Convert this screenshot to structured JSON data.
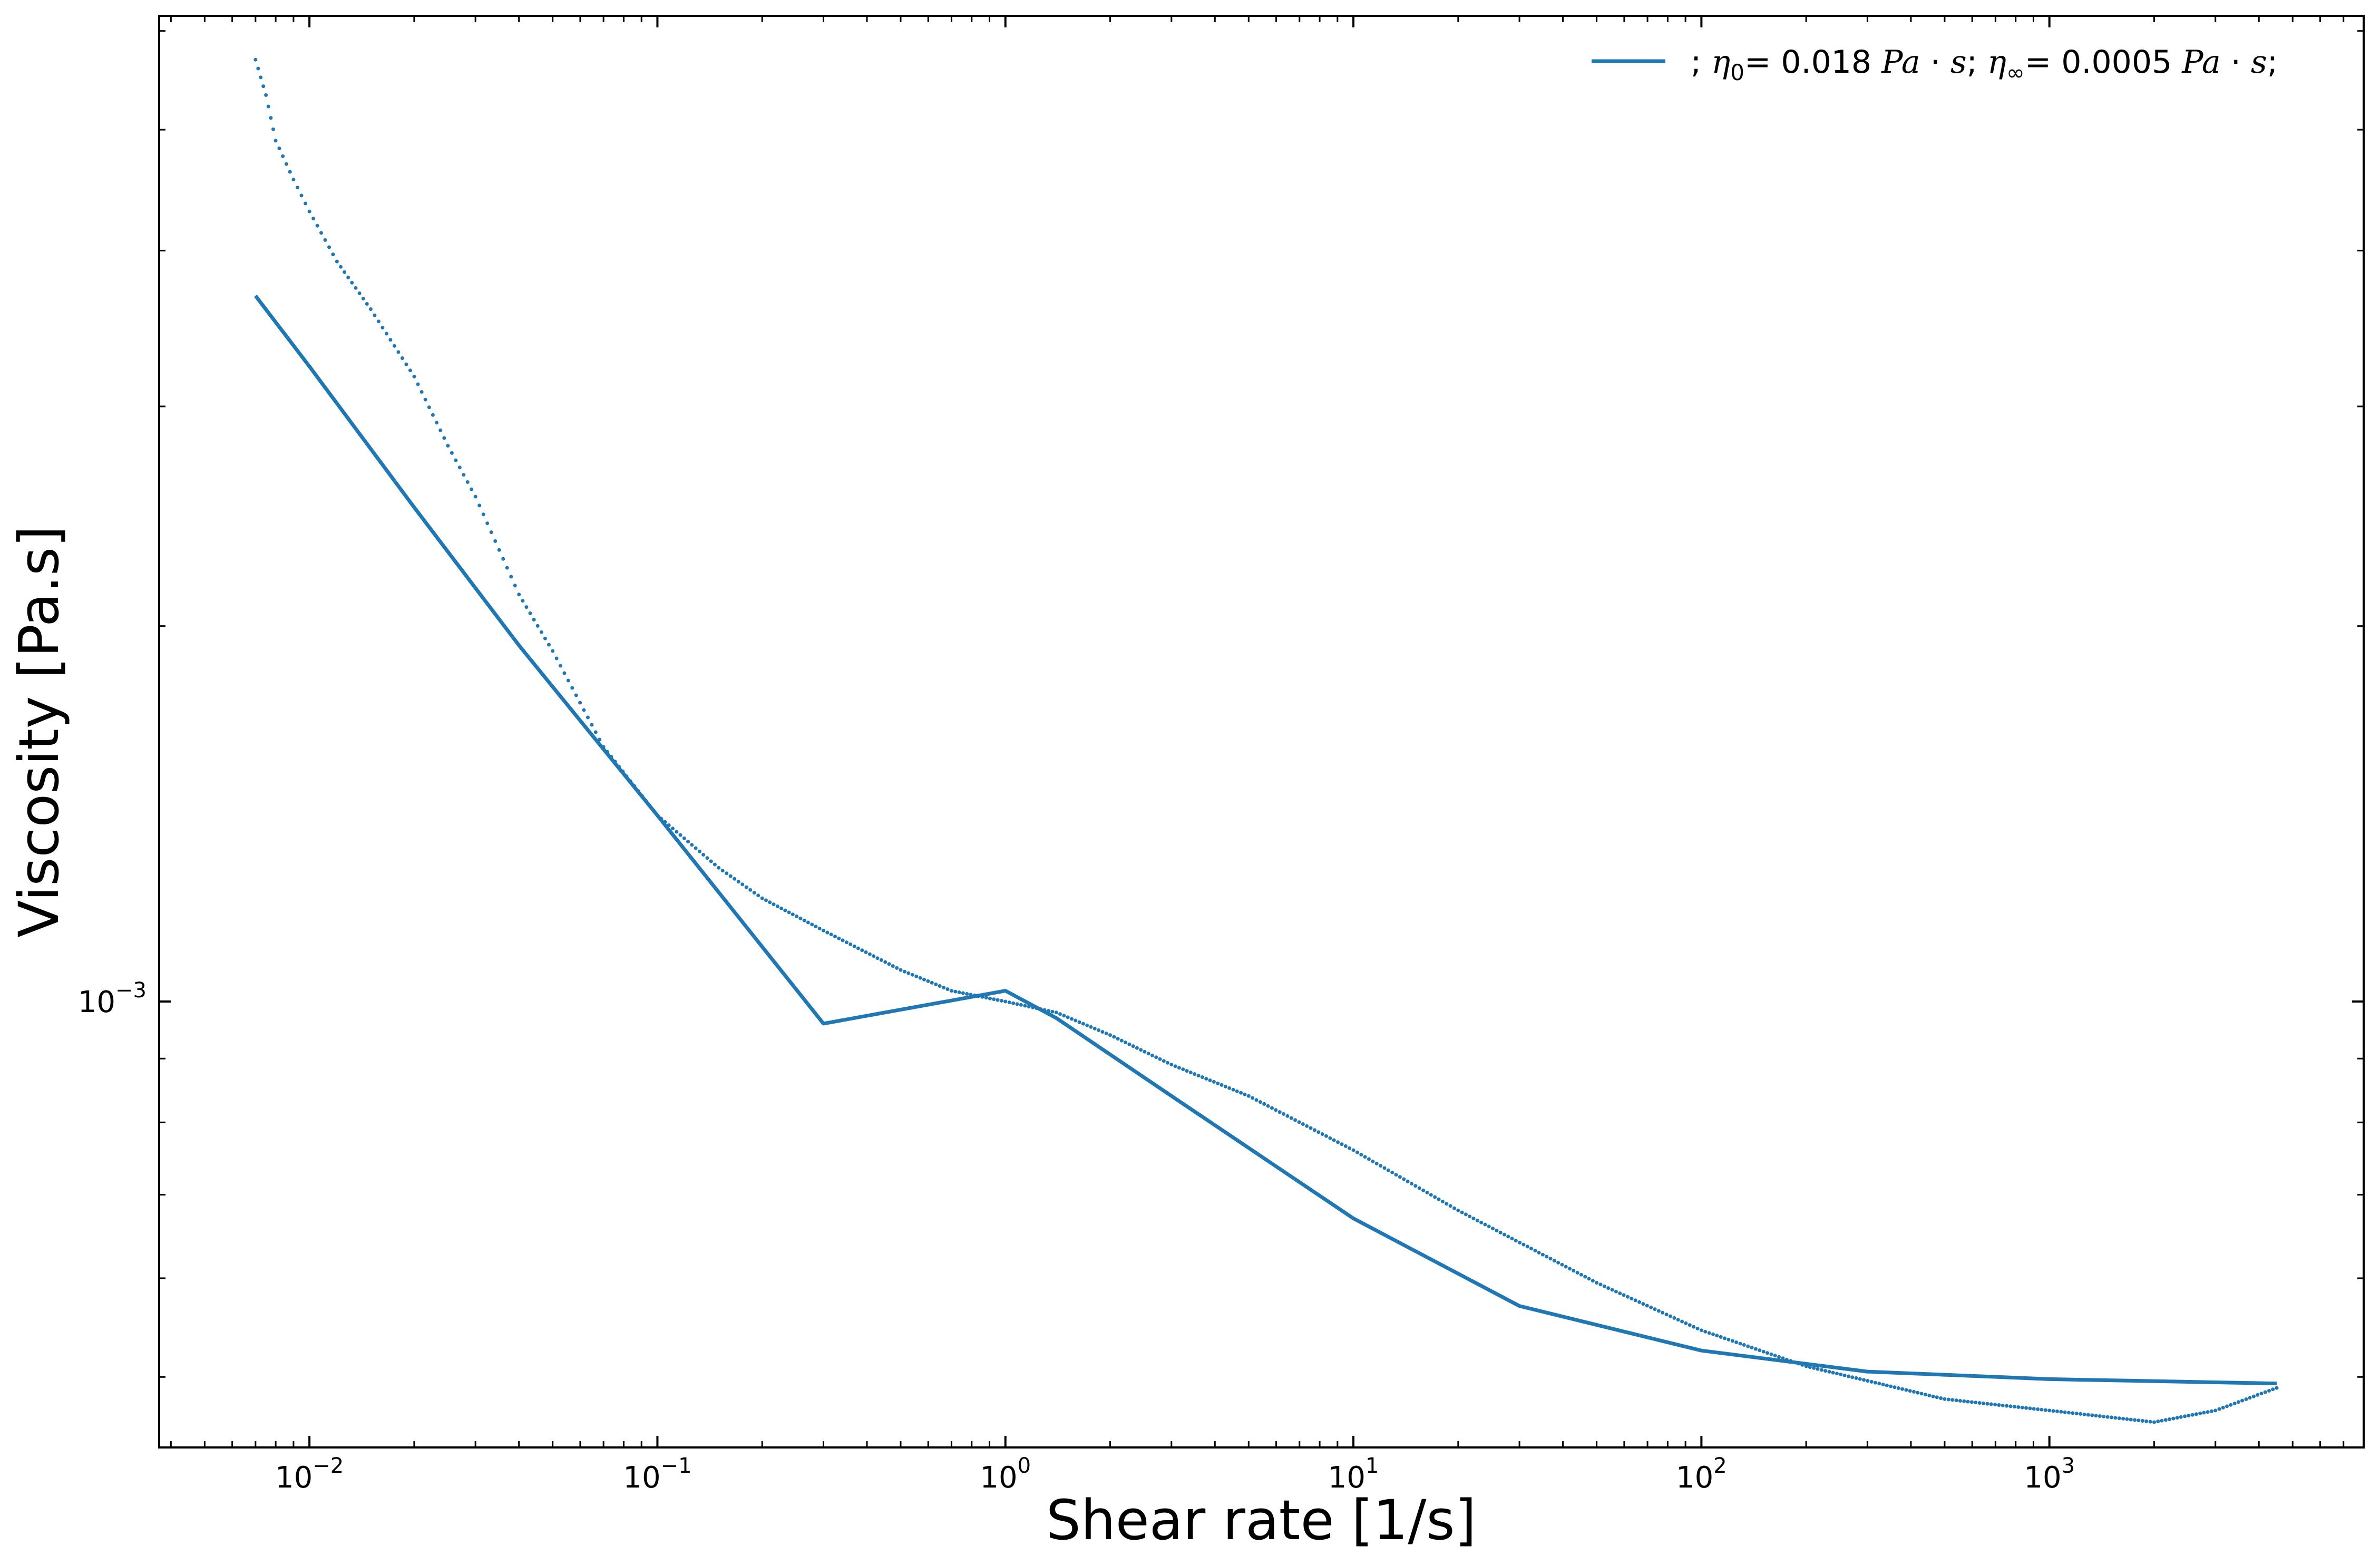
{
  "chart_data": {
    "type": "line",
    "xlabel": "Shear rate [1/s]",
    "ylabel": "Viscosity [Pa.s]",
    "xscale": "log",
    "yscale": "log",
    "xlim": [
      0.0037,
      8000
    ],
    "ylim": [
      0.000439,
      0.00617
    ],
    "x_ticks": [
      {
        "base": "10",
        "exp": "−2",
        "value": 0.01
      },
      {
        "base": "10",
        "exp": "−1",
        "value": 0.1
      },
      {
        "base": "10",
        "exp": "0",
        "value": 1
      },
      {
        "base": "10",
        "exp": "1",
        "value": 10
      },
      {
        "base": "10",
        "exp": "2",
        "value": 100
      },
      {
        "base": "10",
        "exp": "3",
        "value": 1000
      }
    ],
    "y_ticks": [
      {
        "base": "10",
        "exp": "−3",
        "value": 0.001
      }
    ],
    "legend": {
      "placement": "top-right",
      "prefix": "; ",
      "eta0_value": "= 0.018 ",
      "unit": "Pa",
      "dot": " · ",
      "unit_s": "s",
      "sep": "; ",
      "etainf_value": "= 0.0005 ",
      "suffix": ";",
      "eta_symbol": "η",
      "sub_zero": "0",
      "sub_inf": "∞"
    },
    "color": "#1f77b4",
    "series": [
      {
        "style": "line",
        "x": [
          0.007,
          0.01,
          0.02,
          0.04,
          0.1,
          0.3,
          1,
          1.4,
          3,
          10,
          30,
          100,
          300,
          1000,
          4500
        ],
        "y": [
          0.00368,
          0.00323,
          0.00249,
          0.00193,
          0.00141,
          0.00096,
          0.00102,
          0.00097,
          0.00084,
          0.00067,
          0.00057,
          0.000525,
          0.000505,
          0.000498,
          0.000494
        ]
      },
      {
        "style": "points",
        "x": [
          0.007,
          0.0075,
          0.008,
          0.009,
          0.01,
          0.012,
          0.015,
          0.02,
          0.025,
          0.03,
          0.04,
          0.05,
          0.07,
          0.1,
          0.15,
          0.2,
          0.3,
          0.5,
          0.7,
          1.0,
          1.4,
          2,
          3,
          5,
          10,
          20,
          50,
          100,
          200,
          500,
          1000,
          2000,
          3000,
          4500
        ],
        "y": [
          0.00569,
          0.00533,
          0.0049,
          0.00456,
          0.0043,
          0.00392,
          0.00359,
          0.00317,
          0.00279,
          0.00254,
          0.00212,
          0.00191,
          0.0016,
          0.00141,
          0.00128,
          0.00121,
          0.00114,
          0.00106,
          0.00102,
          0.001,
          0.00098,
          0.00094,
          0.00089,
          0.00084,
          0.00076,
          0.00068,
          0.000595,
          0.000545,
          0.00051,
          0.00048,
          0.00047,
          0.00046,
          0.00047,
          0.00049
        ]
      }
    ]
  }
}
